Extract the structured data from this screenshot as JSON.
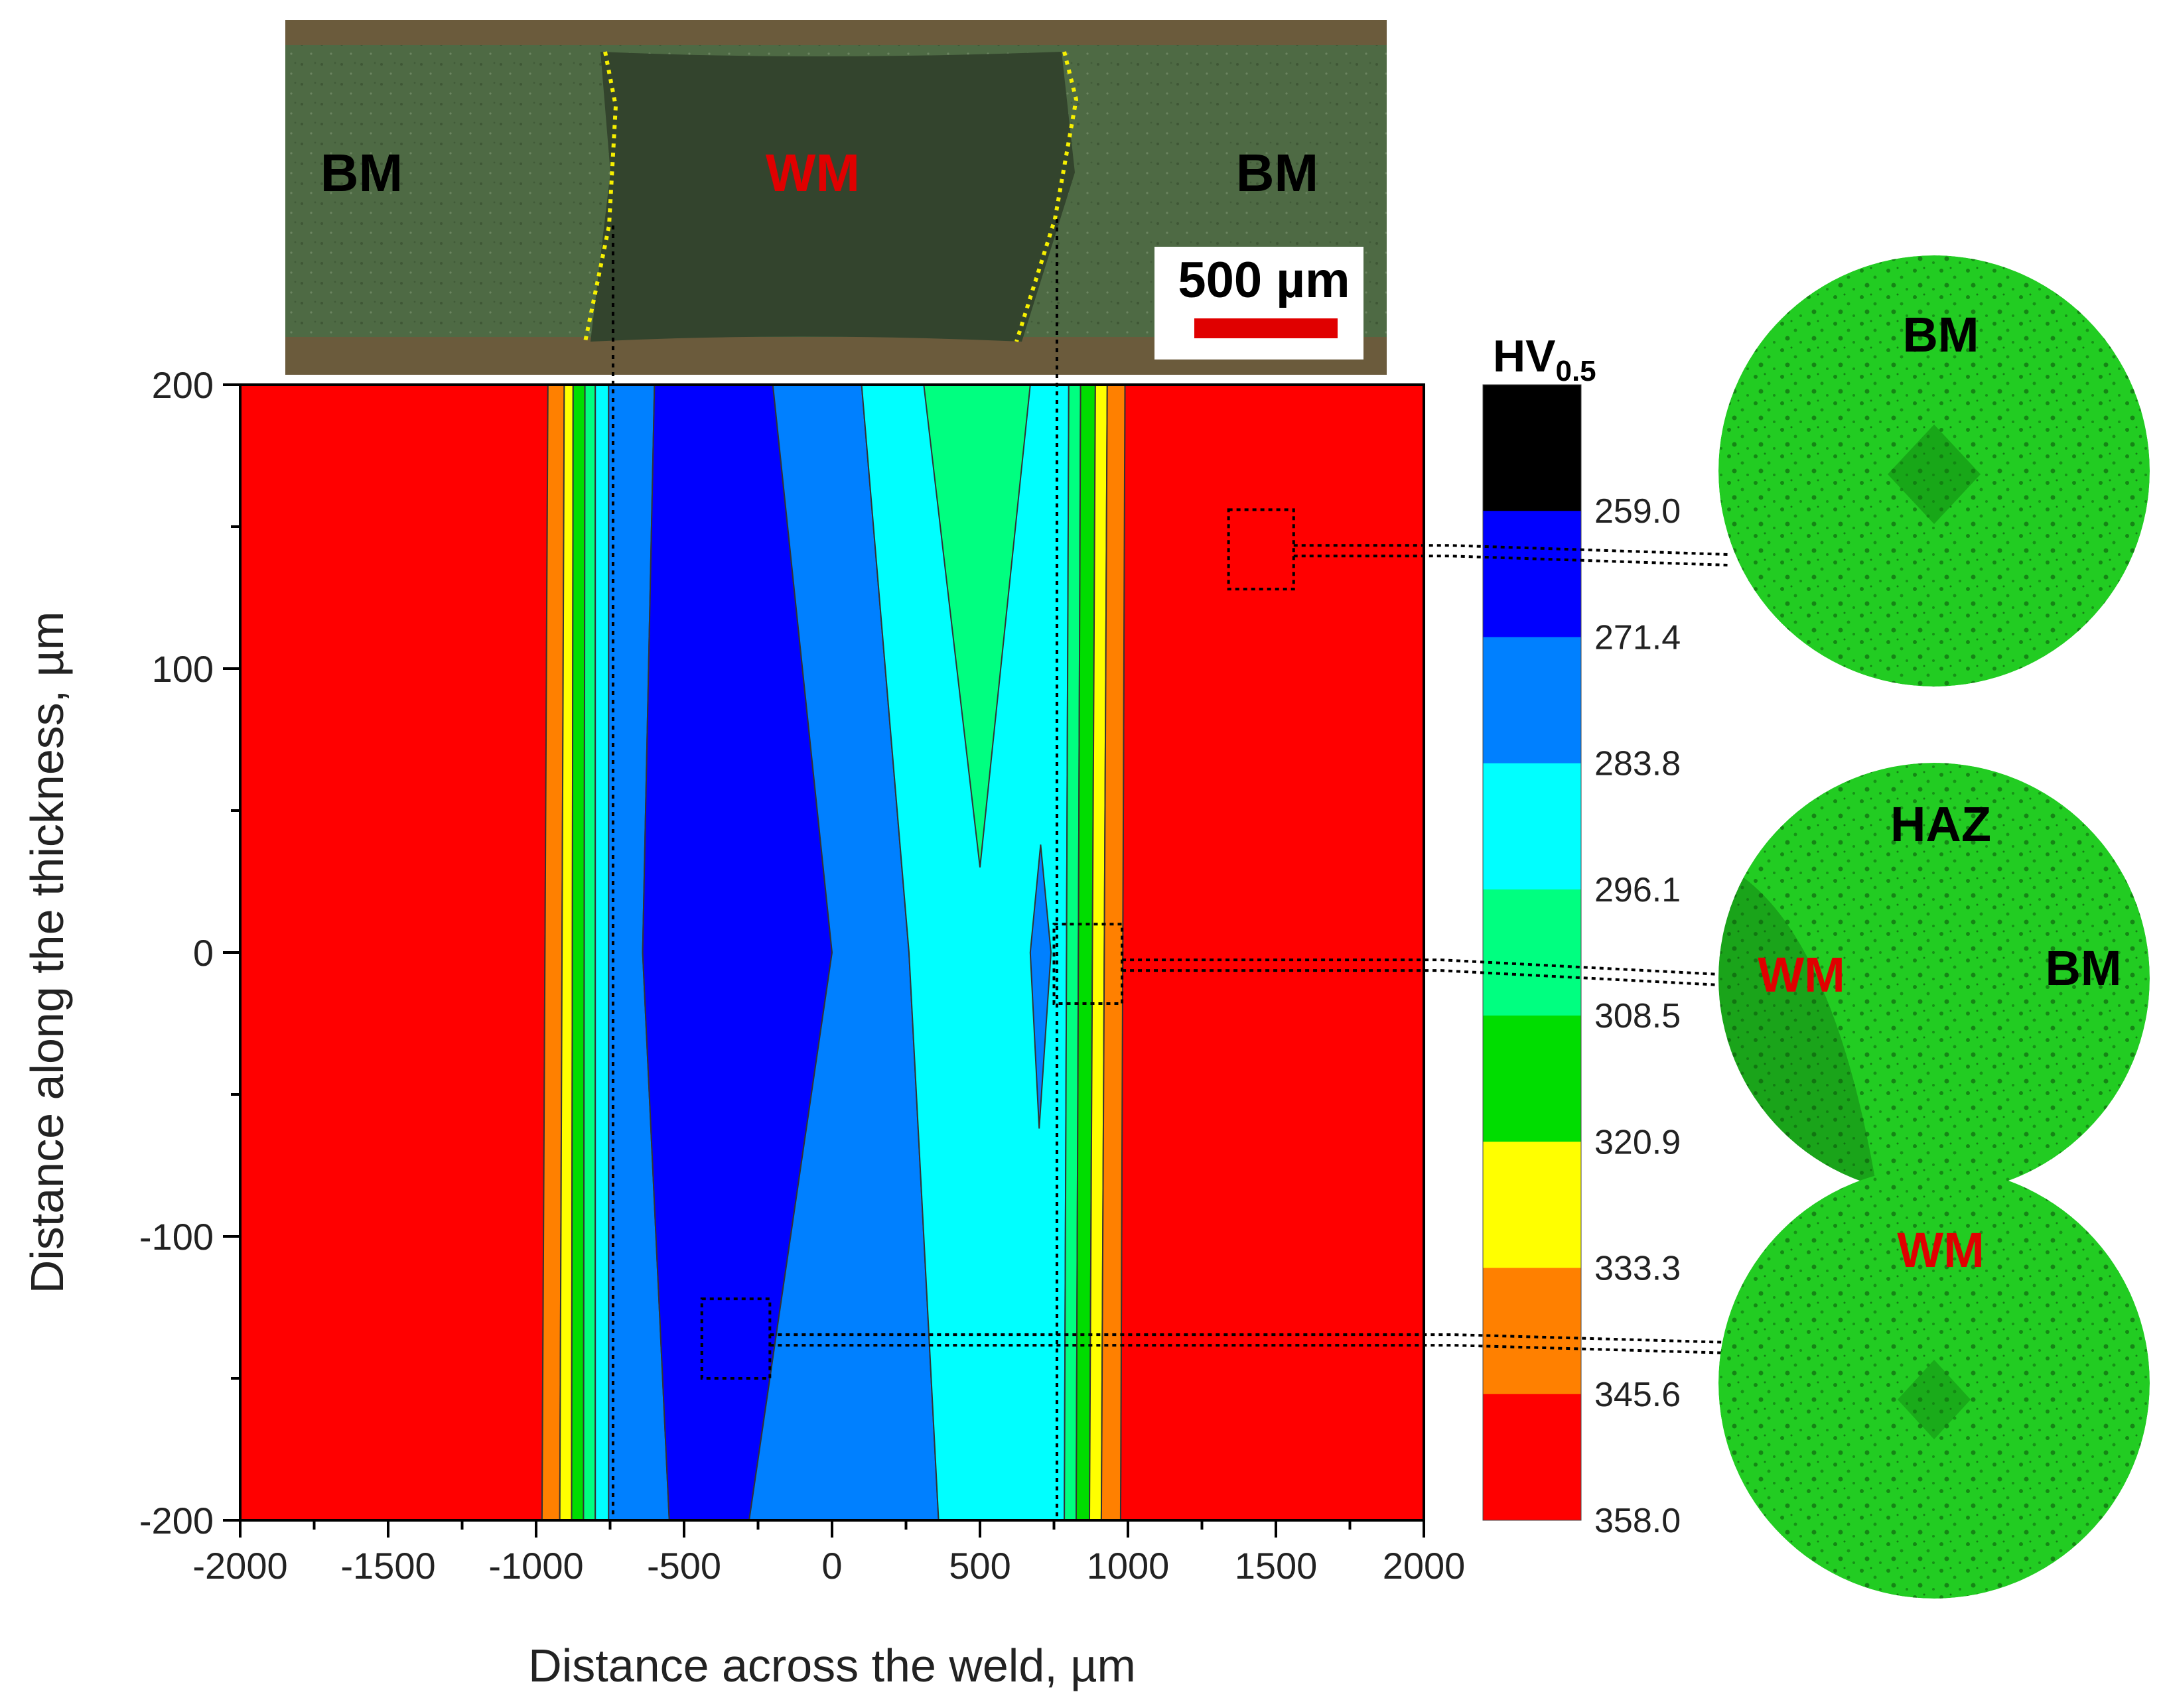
{
  "micrograph_top": {
    "labels": [
      "BM",
      "WM",
      "BM"
    ],
    "scale_bar_label": "500 µm",
    "colors": {
      "bm_label": "#000000",
      "wm_label": "#e00000",
      "scale_bar": "#e00000",
      "sample": "#4e6a44",
      "weld": "#33442d",
      "fusion_line": "#f7f000"
    }
  },
  "chart_data": {
    "type": "heatmap",
    "title": "",
    "xlabel": "Distance across the weld, µm",
    "ylabel": "Distance along the thickness, µm",
    "xlim": [
      -2000,
      2000
    ],
    "ylim": [
      -200,
      200
    ],
    "xticks": [
      "-2000",
      "-1500",
      "-1000",
      "-500",
      "0",
      "500",
      "1000",
      "1500",
      "2000"
    ],
    "yticks": [
      "200",
      "100",
      "0",
      "-100",
      "-200"
    ],
    "fusion_boundaries_x": [
      -740,
      760
    ],
    "colorbar": {
      "title": "HV",
      "title_sub": "0.5",
      "levels": [
        "259.0",
        "271.4",
        "283.8",
        "296.1",
        "308.5",
        "320.9",
        "333.3",
        "345.6",
        "358.0"
      ],
      "colors": [
        "#000000",
        "#0000ff",
        "#0080ff",
        "#00ffff",
        "#00ff80",
        "#00dd00",
        "#ffff00",
        "#ff8000",
        "#ff0000"
      ]
    },
    "regions": [
      {
        "level": "345.6-358.0",
        "color": "#ff0000",
        "points": [
          [
            -2000,
            200
          ],
          [
            -960,
            200
          ],
          [
            -980,
            -200
          ],
          [
            -2000,
            -200
          ]
        ]
      },
      {
        "level": "345.6-358.0",
        "color": "#ff0000",
        "points": [
          [
            990,
            200
          ],
          [
            2000,
            200
          ],
          [
            2000,
            -200
          ],
          [
            975,
            -200
          ]
        ]
      },
      {
        "level": "333.3-345.6",
        "color": "#ff8000",
        "points": [
          [
            -960,
            200
          ],
          [
            -905,
            200
          ],
          [
            -920,
            -200
          ],
          [
            -980,
            -200
          ]
        ]
      },
      {
        "level": "320.9-333.3",
        "color": "#ffff00",
        "points": [
          [
            -905,
            200
          ],
          [
            -875,
            200
          ],
          [
            -880,
            -200
          ],
          [
            -920,
            -200
          ]
        ]
      },
      {
        "level": "308.5-320.9",
        "color": "#00dd00",
        "points": [
          [
            -875,
            200
          ],
          [
            -835,
            200
          ],
          [
            -840,
            -200
          ],
          [
            -880,
            -200
          ]
        ]
      },
      {
        "level": "296.1-308.5",
        "color": "#00ff80",
        "points": [
          [
            -835,
            200
          ],
          [
            -800,
            200
          ],
          [
            -800,
            -200
          ],
          [
            -840,
            -200
          ]
        ]
      },
      {
        "level": "283.8-296.1",
        "color": "#00ffff",
        "points": [
          [
            -800,
            200
          ],
          [
            -755,
            200
          ],
          [
            -755,
            -200
          ],
          [
            -800,
            -200
          ]
        ]
      },
      {
        "level": "271.4-283.8",
        "color": "#0080ff",
        "points": [
          [
            -755,
            200
          ],
          [
            -600,
            200
          ],
          [
            -640,
            0
          ],
          [
            -550,
            -200
          ],
          [
            -755,
            -200
          ]
        ]
      },
      {
        "level": "259.0-271.4",
        "color": "#0000ff",
        "points": [
          [
            -600,
            200
          ],
          [
            -200,
            200
          ],
          [
            0,
            0
          ],
          [
            -280,
            -200
          ],
          [
            -550,
            -200
          ],
          [
            -640,
            0
          ]
        ]
      },
      {
        "level": "271.4-283.8",
        "color": "#0080ff",
        "points": [
          [
            -200,
            200
          ],
          [
            100,
            200
          ],
          [
            260,
            0
          ],
          [
            360,
            -200
          ],
          [
            -280,
            -200
          ],
          [
            0,
            0
          ]
        ]
      },
      {
        "level": "283.8-296.1",
        "color": "#00ffff",
        "points": [
          [
            100,
            200
          ],
          [
            800,
            200
          ],
          [
            785,
            -200
          ],
          [
            360,
            -200
          ],
          [
            260,
            0
          ]
        ]
      },
      {
        "level": "296.1-308.5",
        "color": "#00ff80",
        "points": [
          [
            310,
            200
          ],
          [
            670,
            200
          ],
          [
            500,
            30
          ]
        ]
      },
      {
        "level": "271.4-283.8",
        "color": "#0080ff",
        "points": [
          [
            705,
            38
          ],
          [
            740,
            0
          ],
          [
            700,
            -62
          ],
          [
            670,
            0
          ]
        ]
      },
      {
        "level": "296.1-308.5",
        "color": "#00ff80",
        "points": [
          [
            800,
            200
          ],
          [
            840,
            200
          ],
          [
            825,
            -200
          ],
          [
            785,
            -200
          ]
        ]
      },
      {
        "level": "308.5-320.9",
        "color": "#00dd00",
        "points": [
          [
            840,
            200
          ],
          [
            890,
            200
          ],
          [
            870,
            -200
          ],
          [
            825,
            -200
          ]
        ]
      },
      {
        "level": "320.9-333.3",
        "color": "#ffff00",
        "points": [
          [
            890,
            200
          ],
          [
            930,
            200
          ],
          [
            910,
            -200
          ],
          [
            870,
            -200
          ]
        ]
      },
      {
        "level": "333.3-345.6",
        "color": "#ff8000",
        "points": [
          [
            930,
            200
          ],
          [
            990,
            200
          ],
          [
            975,
            -200
          ],
          [
            910,
            -200
          ]
        ]
      }
    ],
    "inspection_boxes": [
      {
        "label": "BM",
        "x": [
          1340,
          1560
        ],
        "y": [
          128,
          156
        ]
      },
      {
        "label": "HAZ",
        "x": [
          750,
          980
        ],
        "y": [
          -18,
          10
        ]
      },
      {
        "label": "WM",
        "x": [
          -440,
          -210
        ],
        "y": [
          -150,
          -122
        ]
      }
    ]
  },
  "insets": [
    {
      "labels": [
        {
          "text": "BM",
          "color": "#000000"
        }
      ]
    },
    {
      "labels": [
        {
          "text": "HAZ",
          "color": "#000000"
        },
        {
          "text": "WM",
          "color": "#e00000"
        },
        {
          "text": "BM",
          "color": "#000000"
        }
      ]
    },
    {
      "labels": [
        {
          "text": "WM",
          "color": "#e00000"
        }
      ]
    }
  ]
}
